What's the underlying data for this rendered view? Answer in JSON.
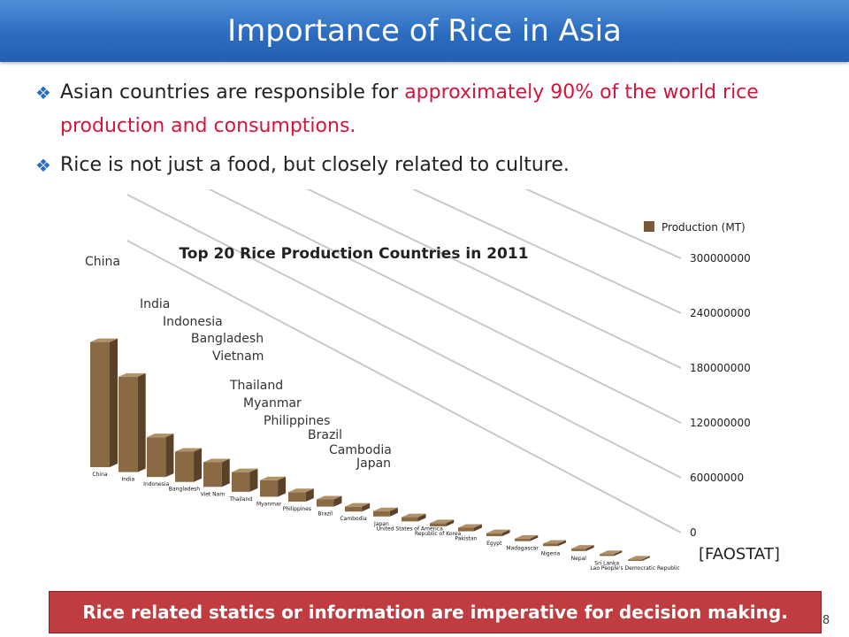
{
  "slide": {
    "title": "Importance of Rice in Asia",
    "bullets": [
      {
        "text_plain": "Asian countries are responsible for ",
        "text_highlight": "approximately 90% of the world rice production and consumptions."
      },
      {
        "text_plain": "Rice is not just a food, but closely related to culture.",
        "text_highlight": ""
      }
    ],
    "source": "[FAOSTAT]",
    "banner": "Rice related statics or information are imperative for decision making.",
    "page_number": "8",
    "bullet_icon": "diamond-bullet-icon",
    "colors": {
      "title_bar": "#2b6cc0",
      "highlight": "#d6143c",
      "banner": "#bf3c40",
      "bar": "#8a6a45"
    }
  },
  "chart_data": {
    "type": "bar",
    "title": "Top 20 Rice Production Countries in 2011",
    "legend": "Production (MT)",
    "legend_position": "top-right",
    "yticks": [
      "300000000",
      "240000000",
      "180000000",
      "120000000",
      "60000000",
      "0"
    ],
    "ylim": [
      0,
      300000000
    ],
    "categories": [
      "China",
      "India",
      "Indonesia",
      "Bangladesh",
      "Viet Nam",
      "Thailand",
      "Myanmar",
      "Philippines",
      "Brazil",
      "Cambodia",
      "Japan",
      "United States of America",
      "Republic of Korea",
      "Pakistan",
      "Egypt",
      "Madagascar",
      "Nigeria",
      "Nepal",
      "Sri Lanka",
      "Lao People's Democratic Republic"
    ],
    "values": [
      202000000,
      156000000,
      66000000,
      51000000,
      42000000,
      34000000,
      29000000,
      17000000,
      13000000,
      9000000,
      10000000,
      8000000,
      6000000,
      7000000,
      6000000,
      5000000,
      5000000,
      5000000,
      4000000,
      3000000
    ],
    "annotations": [
      "China",
      "India",
      "Indonesia",
      "Bangladesh",
      "Vietnam",
      "Thailand",
      "Myanmar",
      "Philippines",
      "Brazil",
      "Cambodia",
      "Japan"
    ]
  }
}
